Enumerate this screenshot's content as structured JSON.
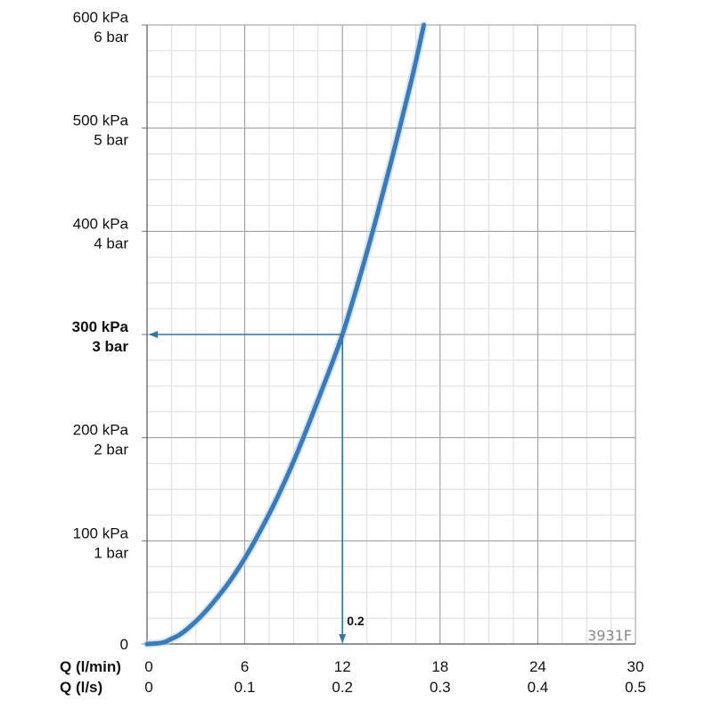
{
  "chart_data": {
    "type": "line",
    "code_label": "3931F",
    "colors": {
      "curve": "#3a7bb8",
      "annotation": "#2d74b0",
      "grid_major": "#9a9a9a",
      "grid_minor": "#dddddd"
    },
    "x_axis": {
      "lim": [
        0,
        30
      ],
      "major_ticks": [
        0,
        6,
        12,
        18,
        24,
        30
      ],
      "minor_step": 1.5,
      "rows": [
        {
          "label": "Q (l/min)",
          "ticks": [
            "0",
            "6",
            "12",
            "18",
            "24",
            "30"
          ]
        },
        {
          "label": "Q (l/s)",
          "ticks": [
            "0",
            "0.1",
            "0.2",
            "0.3",
            "0.4",
            "0.5"
          ]
        }
      ]
    },
    "y_axis": {
      "lim": [
        0,
        600
      ],
      "minor_step": 25,
      "ticks": [
        {
          "value": 0,
          "lines": [
            "0"
          ],
          "bold": false
        },
        {
          "value": 100,
          "lines": [
            "100 kPa",
            "1 bar"
          ],
          "bold": false
        },
        {
          "value": 200,
          "lines": [
            "200 kPa",
            "2 bar"
          ],
          "bold": false
        },
        {
          "value": 300,
          "lines": [
            "300 kPa",
            "3 bar"
          ],
          "bold": true
        },
        {
          "value": 400,
          "lines": [
            "400 kPa",
            "4 bar"
          ],
          "bold": false
        },
        {
          "value": 500,
          "lines": [
            "500 kPa",
            "5 bar"
          ],
          "bold": false
        },
        {
          "value": 600,
          "lines": [
            "600 kPa",
            "6 bar"
          ],
          "bold": false
        }
      ]
    },
    "series": [
      {
        "x": [
          0,
          0.5,
          1,
          1.5,
          2,
          2.5,
          3,
          3.5,
          4,
          5,
          6,
          7,
          8,
          9,
          10,
          11,
          12,
          13,
          14,
          15,
          16,
          16.5,
          17
        ],
        "y": [
          0,
          0.5,
          1.5,
          5,
          9,
          15,
          22,
          30,
          39,
          59,
          83,
          111,
          142,
          177,
          216,
          257,
          300,
          352,
          408,
          468,
          531,
          564,
          600
        ]
      }
    ],
    "annotation": {
      "x": 12,
      "y": 300,
      "label": "0.2"
    }
  }
}
